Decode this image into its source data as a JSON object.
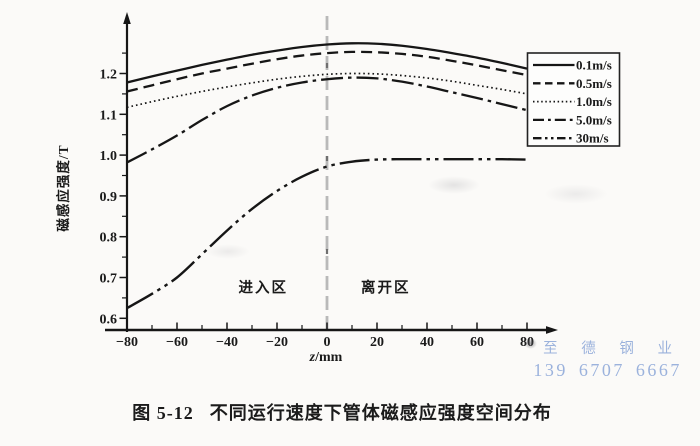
{
  "page": {
    "background": "#fbfaf8"
  },
  "caption": {
    "label": "图 5-12",
    "text": "不同运行速度下管体磁感应强度空间分布"
  },
  "watermark": {
    "line1": "至 德 钢 业",
    "line2": "139 6707 6667",
    "color": "#8ba6d8"
  },
  "chart_data": {
    "type": "line",
    "title": "图 5-12 不同运行速度下管体磁感应强度空间分布",
    "xlabel": "z/mm",
    "ylabel": "磁感应强度/T",
    "xlim": [
      -80,
      80
    ],
    "ylim": [
      0.6,
      1.28
    ],
    "x_ticks": [
      -80,
      -60,
      -40,
      -20,
      0,
      20,
      40,
      60,
      80
    ],
    "y_ticks": [
      0.6,
      0.7,
      0.8,
      0.9,
      1.0,
      1.1,
      1.2
    ],
    "grid": false,
    "legend_position": "upper right",
    "line_color": "#161616",
    "x": [
      -80,
      -70,
      -60,
      -50,
      -40,
      -30,
      -20,
      -10,
      0,
      10,
      20,
      30,
      40,
      50,
      60,
      70,
      80
    ],
    "series": [
      {
        "name": "0.1m/s",
        "style": "solid",
        "values": [
          1.178,
          1.193,
          1.207,
          1.221,
          1.234,
          1.246,
          1.256,
          1.265,
          1.271,
          1.274,
          1.273,
          1.268,
          1.26,
          1.25,
          1.239,
          1.226,
          1.212
        ]
      },
      {
        "name": "0.5m/s",
        "style": "dashed",
        "values": [
          1.156,
          1.171,
          1.186,
          1.2,
          1.212,
          1.224,
          1.235,
          1.244,
          1.25,
          1.253,
          1.252,
          1.248,
          1.241,
          1.231,
          1.22,
          1.208,
          1.196
        ]
      },
      {
        "name": "1.0m/s",
        "style": "dotted",
        "values": [
          1.117,
          1.131,
          1.144,
          1.156,
          1.167,
          1.177,
          1.186,
          1.193,
          1.198,
          1.2,
          1.199,
          1.195,
          1.189,
          1.181,
          1.171,
          1.161,
          1.15
        ]
      },
      {
        "name": "5.0m/s",
        "style": "dash-dot",
        "values": [
          0.982,
          1.014,
          1.048,
          1.086,
          1.12,
          1.146,
          1.165,
          1.178,
          1.186,
          1.19,
          1.188,
          1.18,
          1.168,
          1.154,
          1.14,
          1.125,
          1.11
        ]
      },
      {
        "name": "30m/s",
        "style": "dash-dot-dot",
        "values": [
          0.625,
          0.66,
          0.7,
          0.757,
          0.815,
          0.868,
          0.912,
          0.947,
          0.972,
          0.984,
          0.989,
          0.99,
          0.99,
          0.99,
          0.99,
          0.99,
          0.989
        ]
      }
    ],
    "annotations": [
      {
        "text": "进入区",
        "x": -25.5,
        "y": 0.676
      },
      {
        "text": "离开区",
        "x": 23.5,
        "y": 0.676
      }
    ],
    "vline": {
      "x": 0,
      "color": "#b9b9b9"
    }
  }
}
